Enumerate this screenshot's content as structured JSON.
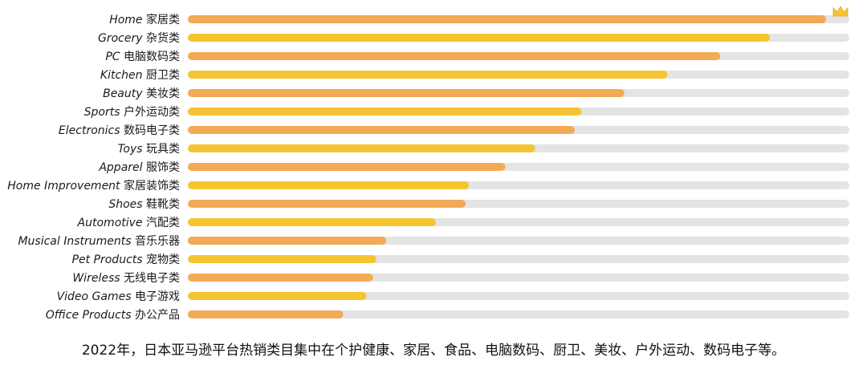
{
  "caption": "2022年，日本亚马逊平台热销类目集中在个护健康、家居、食品、电脑数码、厨卫、美妆、户外运动、数码电子等。",
  "crown_icon": "crown-icon",
  "colors": {
    "track": "#e4e4e4",
    "orange": "#f2aa56",
    "yellow": "#f5c531",
    "crown": "#f5c531"
  },
  "chart_data": {
    "type": "bar",
    "orientation": "horizontal",
    "xlim": [
      0,
      100
    ],
    "grid": false,
    "legend": "none",
    "categories": [
      {
        "en": "Home",
        "zh": "家居类"
      },
      {
        "en": "Grocery",
        "zh": "杂货类"
      },
      {
        "en": "PC",
        "zh": "电脑数码类"
      },
      {
        "en": "Kitchen",
        "zh": "厨卫类"
      },
      {
        "en": "Beauty",
        "zh": "美妆类"
      },
      {
        "en": "Sports",
        "zh": "户外运动类"
      },
      {
        "en": "Electronics",
        "zh": "数码电子类"
      },
      {
        "en": "Toys",
        "zh": "玩具类"
      },
      {
        "en": "Apparel",
        "zh": "服饰类"
      },
      {
        "en": "Home Improvement",
        "zh": "家居装饰类"
      },
      {
        "en": "Shoes",
        "zh": "鞋靴类"
      },
      {
        "en": "Automotive",
        "zh": "汽配类"
      },
      {
        "en": "Musical Instruments",
        "zh": "音乐乐器"
      },
      {
        "en": "Pet Products",
        "zh": "宠物类"
      },
      {
        "en": "Wireless",
        "zh": "无线电子类"
      },
      {
        "en": "Video Games",
        "zh": "电子游戏"
      },
      {
        "en": "Office Products",
        "zh": "办公产品"
      }
    ],
    "values": [
      96.5,
      88,
      80.5,
      72.5,
      66,
      59.5,
      58.5,
      52.5,
      48,
      42.5,
      42,
      37.5,
      30,
      28.5,
      28,
      27,
      23.5
    ],
    "bar_colors": [
      "orange",
      "yellow",
      "orange",
      "yellow",
      "orange",
      "yellow",
      "orange",
      "yellow",
      "orange",
      "yellow",
      "orange",
      "yellow",
      "orange",
      "yellow",
      "orange",
      "yellow",
      "orange"
    ]
  }
}
